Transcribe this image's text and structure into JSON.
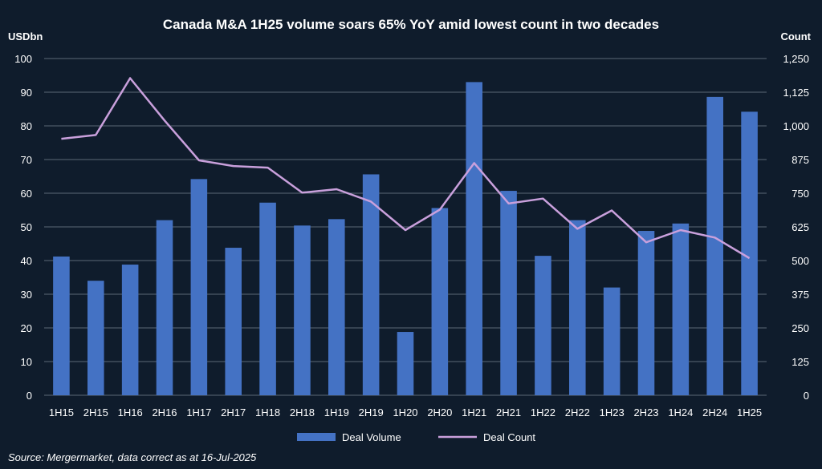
{
  "chart_data": {
    "type": "bar",
    "title": "Canada M&A 1H25 volume soars 65% YoY amid lowest count in two decades",
    "left_axis_label": "USDbn",
    "right_axis_label": "Count",
    "categories": [
      "1H15",
      "2H15",
      "1H16",
      "2H16",
      "1H17",
      "2H17",
      "1H18",
      "2H18",
      "1H19",
      "2H19",
      "1H20",
      "2H20",
      "1H21",
      "2H21",
      "1H22",
      "2H22",
      "1H23",
      "2H23",
      "1H24",
      "2H24",
      "1H25"
    ],
    "series": [
      {
        "name": "Deal Volume",
        "type": "bar",
        "axis": "left",
        "color": "#4472c4",
        "values": [
          41.2,
          34.0,
          38.8,
          52.0,
          64.2,
          43.8,
          57.2,
          50.4,
          52.3,
          65.6,
          18.8,
          55.6,
          93.0,
          60.7,
          41.4,
          52.0,
          32.0,
          48.8,
          51.0,
          88.6,
          84.2
        ]
      },
      {
        "name": "Deal Count",
        "type": "line",
        "axis": "right",
        "color": "#c9a0dc",
        "values": [
          952,
          966,
          1177,
          1020,
          872,
          851,
          845,
          752,
          765,
          719,
          613,
          689,
          862,
          712,
          730,
          618,
          686,
          568,
          613,
          585,
          509
        ]
      }
    ],
    "ylim_left": [
      0,
      100
    ],
    "yticks_left": [
      "0",
      "10",
      "20",
      "30",
      "40",
      "50",
      "60",
      "70",
      "80",
      "90",
      "100"
    ],
    "ylim_right": [
      0,
      1250
    ],
    "yticks_right": [
      "0",
      "125",
      "250",
      "375",
      "500",
      "625",
      "750",
      "875",
      "1,000",
      "1,125",
      "1,250"
    ],
    "grid": true,
    "legend_position": "bottom"
  },
  "source_note": "Source: Mergermarket, data correct as at 16-Jul-2025"
}
